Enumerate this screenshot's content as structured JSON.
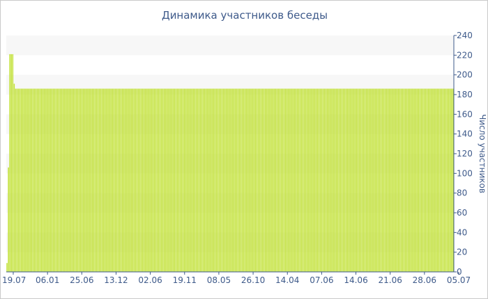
{
  "chart_data": {
    "type": "bar",
    "title": "Динамика участников беседы",
    "xlabel": "",
    "ylabel": "Число участников",
    "ylim": [
      0,
      240
    ],
    "yticks": [
      0,
      20,
      40,
      60,
      80,
      100,
      120,
      140,
      160,
      180,
      200,
      220,
      240
    ],
    "x_tick_labels": [
      "19.07",
      "06.01",
      "25.06",
      "13.12",
      "02.06",
      "19.11",
      "08.05",
      "26.10",
      "14.04",
      "07.06",
      "14.06",
      "21.06",
      "28.06",
      "05.07"
    ],
    "values": [
      9,
      106,
      221,
      221,
      221,
      191,
      186,
      186,
      186,
      186,
      186,
      186,
      186,
      186,
      186,
      186,
      186,
      186,
      186,
      186,
      186,
      186,
      186,
      186,
      186,
      186,
      186,
      186,
      186,
      186,
      186,
      186,
      186,
      186,
      186,
      186,
      186,
      186,
      186,
      186,
      186,
      186,
      186,
      186,
      186,
      186,
      186,
      186,
      186,
      186,
      186,
      186,
      186,
      186,
      186,
      186,
      186,
      186,
      186,
      186,
      186,
      186,
      186,
      186,
      186,
      186,
      186,
      186,
      186,
      186,
      186,
      186,
      186,
      186,
      186,
      186,
      186,
      186,
      186,
      186,
      186,
      186,
      186,
      186,
      186,
      186,
      186,
      186,
      186,
      186,
      186,
      186,
      186,
      186,
      186,
      186,
      186,
      186,
      186,
      186,
      186,
      186,
      186,
      186,
      186,
      186,
      186,
      186,
      186,
      186,
      186,
      186,
      186,
      186,
      186,
      186,
      186,
      186,
      186,
      186,
      186,
      186,
      186,
      186,
      186,
      186,
      186,
      186,
      186,
      186,
      186,
      186,
      186,
      186,
      186,
      186,
      186,
      186,
      186,
      186,
      186,
      186,
      186,
      186,
      186,
      186,
      186,
      186,
      186,
      186,
      186,
      186,
      186,
      186,
      186,
      186,
      186,
      186,
      186,
      186,
      186,
      186,
      186,
      186,
      186,
      186,
      186,
      186,
      186,
      186,
      186,
      186,
      186,
      186,
      186,
      186,
      186,
      186,
      186,
      186,
      186,
      186,
      186,
      186,
      186,
      186,
      186,
      186,
      186,
      186,
      186,
      186,
      186,
      186,
      186,
      186,
      186,
      186,
      186,
      186,
      186,
      186,
      186,
      186,
      186,
      186,
      186,
      186,
      186,
      186,
      186,
      186,
      186,
      186,
      186,
      186,
      186,
      186,
      186,
      186,
      186,
      186,
      186,
      186,
      186,
      186,
      186,
      186,
      186,
      186,
      186,
      186,
      186,
      186,
      186,
      186,
      186,
      186,
      186,
      186,
      186,
      186,
      186,
      186,
      186,
      186,
      186,
      186,
      186,
      186,
      186,
      186,
      186,
      186,
      186,
      186,
      186,
      186,
      186,
      186,
      186,
      186,
      186,
      186,
      186,
      186,
      186,
      186,
      186,
      186,
      186,
      186,
      186,
      186,
      186,
      186,
      186,
      186,
      186,
      186,
      186,
      186,
      186,
      186,
      186,
      186,
      186,
      186,
      186,
      186,
      186,
      186,
      186,
      186,
      186,
      186,
      186,
      186,
      186,
      186,
      186,
      186,
      186,
      186,
      186,
      186,
      186,
      186,
      186,
      186
    ],
    "grid": true,
    "y_axis_position": "right",
    "colors": {
      "bar": "#bfe02e",
      "band": "#f7f7f7",
      "text": "#3e5a8a",
      "axis": "#3e5a8a"
    }
  }
}
